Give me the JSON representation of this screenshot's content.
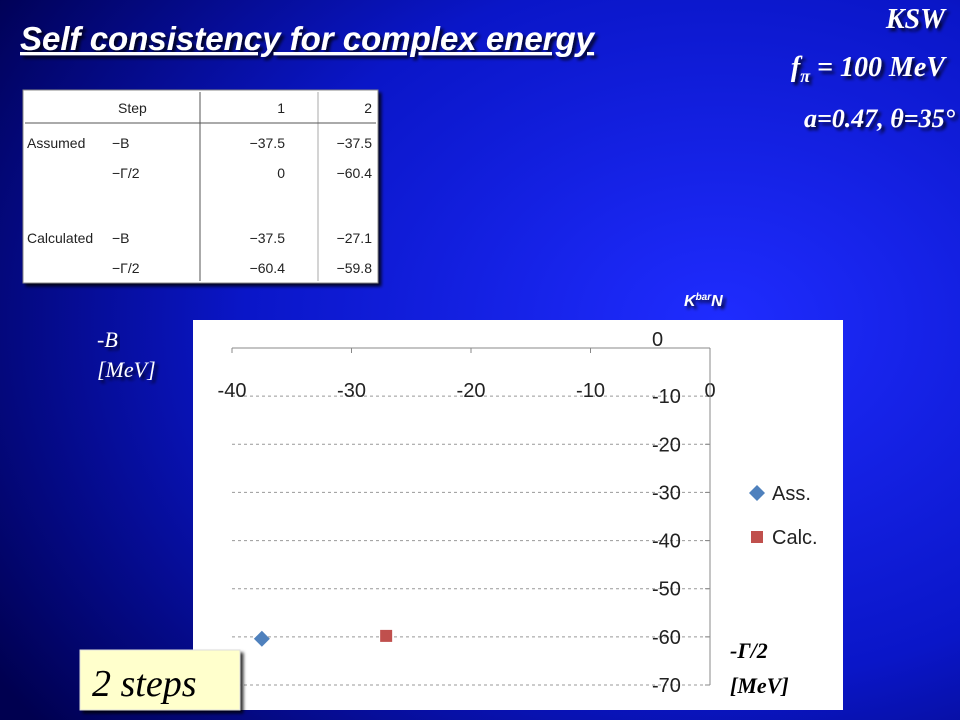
{
  "slide": {
    "title": "Self consistency for complex energy",
    "model": "KSW",
    "f_symbol": "f",
    "f_sub": "π",
    "f_value": " = 100 MeV",
    "params": "a=0.47, θ=35°",
    "badge": "2 steps"
  },
  "table": {
    "header": [
      "Step",
      "1",
      "2"
    ],
    "rows": [
      {
        "group": "Assumed",
        "label": "−B",
        "cells": [
          "−37.5",
          "−37.5"
        ]
      },
      {
        "label": "−Γ/2",
        "cells": [
          "0",
          "−60.4"
        ]
      },
      {
        "group": "Calculated",
        "label": "−B",
        "cells": [
          "−37.5",
          "−27.1"
        ]
      },
      {
        "label": "−Γ/2",
        "cells": [
          "−60.4",
          "−59.8"
        ]
      }
    ]
  },
  "chart_data": {
    "type": "scatter",
    "channel": {
      "base": "K",
      "sup": "bar",
      "tail": "N"
    },
    "x_label": [
      "-B",
      "[MeV]"
    ],
    "y_label": [
      "-Γ/2",
      "[MeV]"
    ],
    "xlim": [
      -40,
      0
    ],
    "xticks": [
      -40,
      -30,
      -20,
      -10,
      0
    ],
    "ylim": [
      -70,
      0
    ],
    "yticks": [
      0,
      -10,
      -20,
      -30,
      -40,
      -50,
      -60,
      -70
    ],
    "grid": true,
    "series": [
      {
        "name": "Ass.",
        "color": "#4f81bd",
        "marker": "diamond",
        "x": [
          -37.5
        ],
        "values": [
          -60.4
        ]
      },
      {
        "name": "Calc.",
        "color": "#c0504d",
        "marker": "square",
        "x": [
          -27.1
        ],
        "values": [
          -59.8
        ]
      }
    ]
  }
}
